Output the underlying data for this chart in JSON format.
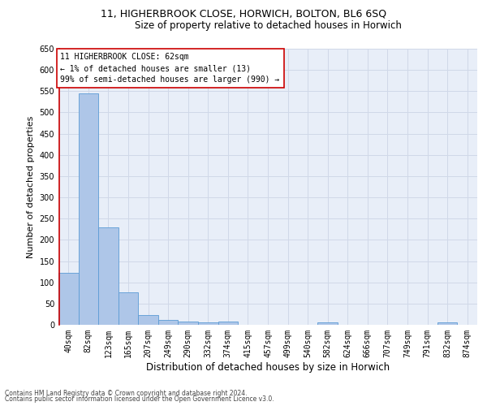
{
  "title": "11, HIGHERBROOK CLOSE, HORWICH, BOLTON, BL6 6SQ",
  "subtitle": "Size of property relative to detached houses in Horwich",
  "xlabel": "Distribution of detached houses by size in Horwich",
  "ylabel": "Number of detached properties",
  "bar_labels": [
    "40sqm",
    "82sqm",
    "123sqm",
    "165sqm",
    "207sqm",
    "249sqm",
    "290sqm",
    "332sqm",
    "374sqm",
    "415sqm",
    "457sqm",
    "499sqm",
    "540sqm",
    "582sqm",
    "624sqm",
    "666sqm",
    "707sqm",
    "749sqm",
    "791sqm",
    "832sqm",
    "874sqm"
  ],
  "bar_values": [
    122,
    545,
    230,
    77,
    22,
    12,
    8,
    6,
    8,
    0,
    0,
    0,
    0,
    6,
    0,
    0,
    0,
    0,
    0,
    6,
    0
  ],
  "bar_color": "#aec6e8",
  "bar_edge_color": "#5b9bd5",
  "grid_color": "#d0d8e8",
  "background_color": "#e8eef8",
  "annotation_text": "11 HIGHERBROOK CLOSE: 62sqm\n← 1% of detached houses are smaller (13)\n99% of semi-detached houses are larger (990) →",
  "annotation_box_color": "#ffffff",
  "annotation_box_edge": "#cc0000",
  "red_line_color": "#cc0000",
  "ylim": [
    0,
    650
  ],
  "yticks": [
    0,
    50,
    100,
    150,
    200,
    250,
    300,
    350,
    400,
    450,
    500,
    550,
    600,
    650
  ],
  "footer_line1": "Contains HM Land Registry data © Crown copyright and database right 2024.",
  "footer_line2": "Contains public sector information licensed under the Open Government Licence v3.0.",
  "title_fontsize": 9,
  "subtitle_fontsize": 8.5,
  "tick_fontsize": 7,
  "ylabel_fontsize": 8,
  "xlabel_fontsize": 8.5,
  "annotation_fontsize": 7,
  "footer_fontsize": 5.5
}
